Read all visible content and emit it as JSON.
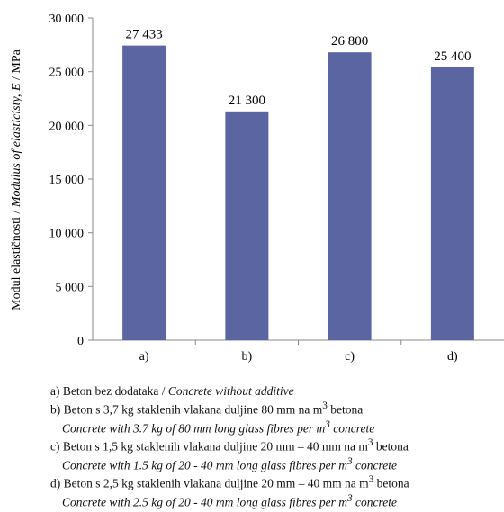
{
  "chart_data": {
    "type": "bar",
    "categories": [
      "a)",
      "b)",
      "c)",
      "d)"
    ],
    "values": [
      27433,
      21300,
      26800,
      25400
    ],
    "data_labels": [
      "27 433",
      "21 300",
      "26 800",
      "25 400"
    ],
    "ylabel_plain": "Modul elastičnosti / ",
    "ylabel_italic": "Modulus of elasticisty, E",
    "ylabel_unit": " / MPa",
    "ylim": [
      0,
      30000
    ],
    "yticks": [
      0,
      5000,
      10000,
      15000,
      20000,
      25000,
      30000
    ],
    "ytick_labels": [
      "0",
      "5 000",
      "10 000",
      "15 000",
      "20 000",
      "25 000",
      "30 000"
    ],
    "bar_color": "#5a65a1",
    "grid": false
  },
  "legend": {
    "a": {
      "main": "a) Beton bez dodataka / ",
      "italic": "Concrete without additive"
    },
    "b": {
      "pre": "b) Beton s 3,7 kg staklenih vlakana duljine 80 mm na m",
      "sup": "3",
      "post": " betona",
      "sub_pre": "Concrete with 3.7 kg of 80 mm long glass fibres per m",
      "sub_sup": "3",
      "sub_post": " concrete"
    },
    "c": {
      "pre": "c) Beton s 1,5 kg staklenih vlakana duljine 20 mm – 40 mm na m",
      "sup": "3",
      "post": " betona",
      "sub_pre": "Concrete with 1.5 kg of 20 - 40 mm long glass fibres per m",
      "sub_sup": "3",
      "sub_post": " concrete"
    },
    "d": {
      "pre": "d) Beton s 2,5 kg staklenih vlakana duljine 20 mm – 40 mm na m",
      "sup": "3",
      "post": " betona",
      "sub_pre": "Concrete with 2.5 kg of 20 - 40 mm long glass fibres per m",
      "sub_sup": "3",
      "sub_post": " concrete"
    }
  }
}
